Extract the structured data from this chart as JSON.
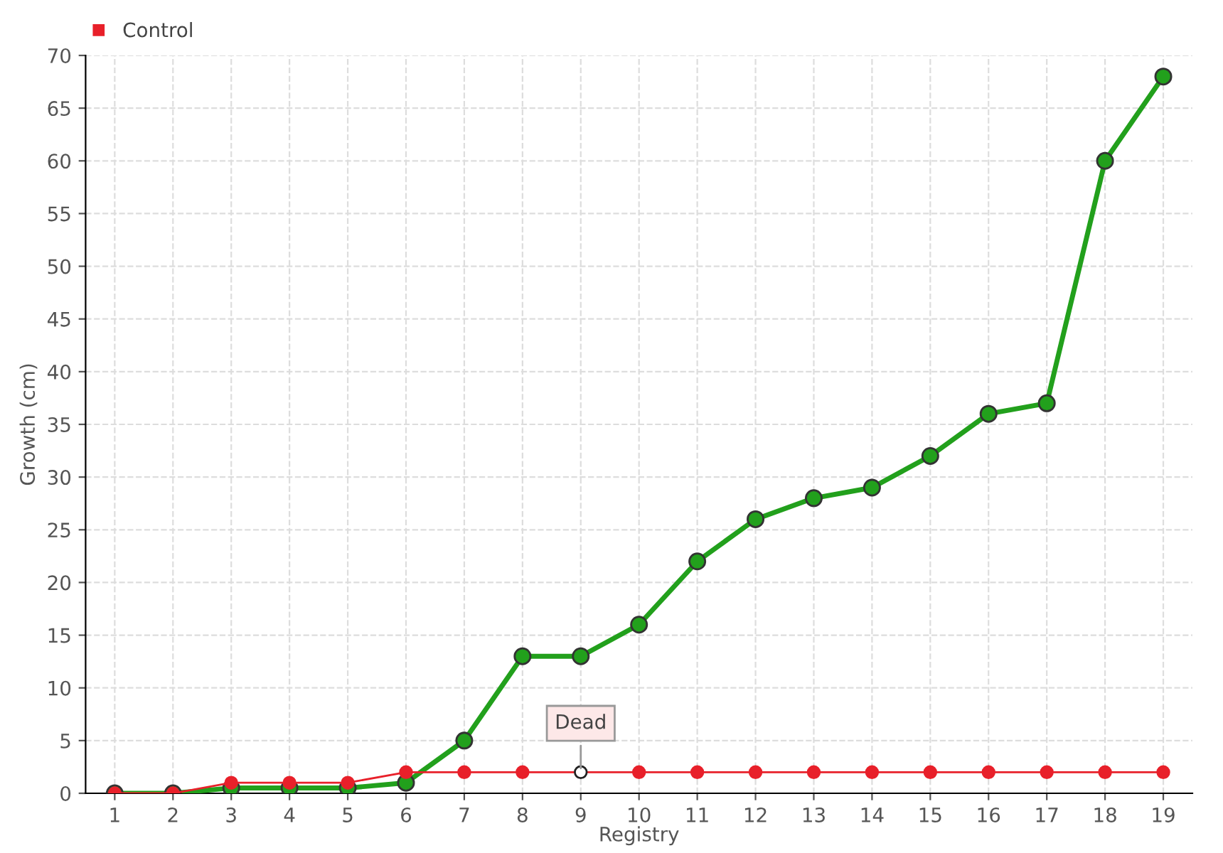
{
  "chart_data": {
    "type": "line",
    "xlabel": "Registry",
    "ylabel": "Growth (cm)",
    "categories": [
      "1",
      "2",
      "3",
      "4",
      "5",
      "6",
      "7",
      "8",
      "9",
      "10",
      "11",
      "12",
      "13",
      "14",
      "15",
      "16",
      "17",
      "18",
      "19"
    ],
    "series": [
      {
        "color": "#22a01c",
        "values": [
          0,
          0,
          0.5,
          0.5,
          0.5,
          1,
          5,
          13,
          13,
          16,
          22,
          26,
          28,
          29,
          32,
          36,
          37,
          60,
          68
        ]
      },
      {
        "name": "Control",
        "color": "#e8202a",
        "values": [
          0,
          0,
          1,
          1,
          1,
          2,
          2,
          2,
          2,
          2,
          2,
          2,
          2,
          2,
          2,
          2,
          2,
          2,
          2
        ]
      }
    ],
    "ylim": [
      0,
      70
    ],
    "yticks": [
      0,
      5,
      10,
      15,
      20,
      25,
      30,
      35,
      40,
      45,
      50,
      55,
      60,
      65,
      70
    ],
    "grid": true,
    "legend": "top left",
    "marker": "circle",
    "line_style": "solid",
    "annotations": [
      {
        "text": "Dead",
        "x": "9",
        "y": 2
      }
    ]
  }
}
